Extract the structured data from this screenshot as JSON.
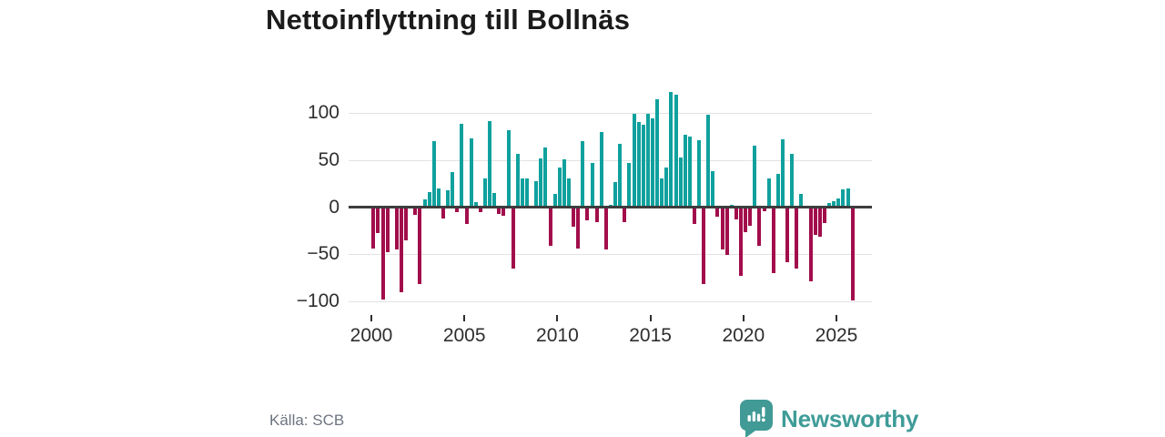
{
  "title": "Nettoinflyttning till Bollnäs",
  "source": "Källa: SCB",
  "brand": {
    "name": "Newsworthy",
    "icon": "bar-chart-speech-bubble-icon",
    "color": "#419a95"
  },
  "chart_data": {
    "type": "bar",
    "title": "Nettoinflyttning till Bollnäs",
    "frequency": "quarterly",
    "x_start": "2000-Q1",
    "x_end": "2025-Q4",
    "values": [
      -44,
      -27,
      -98,
      -48,
      0,
      -45,
      -90,
      -35,
      0,
      -8,
      -82,
      8,
      16,
      70,
      20,
      -12,
      18,
      37,
      -5,
      89,
      -18,
      73,
      6,
      -5,
      31,
      92,
      15,
      -7,
      -9,
      82,
      -65,
      57,
      31,
      31,
      0,
      28,
      52,
      64,
      -41,
      14,
      42,
      51,
      31,
      -21,
      -44,
      70,
      -14,
      47,
      -16,
      80,
      -45,
      3,
      27,
      67,
      -16,
      47,
      99,
      91,
      88,
      99,
      95,
      115,
      31,
      42,
      123,
      120,
      53,
      77,
      75,
      -18,
      71,
      -82,
      98,
      38,
      -10,
      -45,
      -51,
      3,
      -13,
      -73,
      -26,
      -20,
      66,
      -41,
      -4,
      31,
      -70,
      36,
      72,
      -58,
      57,
      -65,
      14,
      0,
      -79,
      -29,
      -31,
      -17,
      5,
      7,
      9,
      19,
      20,
      -99
    ],
    "x_tick_years": [
      2000,
      2005,
      2010,
      2015,
      2020,
      2025
    ],
    "y_ticks": [
      100,
      50,
      0,
      -50,
      -100
    ],
    "ylim": [
      -110,
      125
    ],
    "grid": true,
    "legend": "none",
    "positive_color": "#10a19e",
    "negative_color": "#a20d4b"
  }
}
